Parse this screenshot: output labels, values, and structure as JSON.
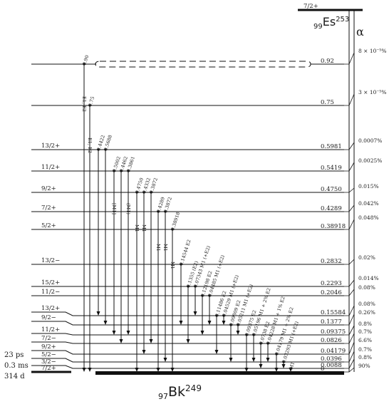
{
  "parent": {
    "prefix": "99",
    "symbol": "Es",
    "mass": "253",
    "spin": "7/2+"
  },
  "alpha_label": "α",
  "daughter": {
    "prefix": "97",
    "symbol": "Bk",
    "mass": "249"
  },
  "levels": [
    {
      "energy": "0.92",
      "spin": "",
      "intensity": "8 × 10⁻⁵%"
    },
    {
      "energy": "0.75",
      "spin": "",
      "intensity": "3 × 10⁻⁵%"
    },
    {
      "energy": "0.5981",
      "spin": "13/2+",
      "intensity": "0.0007%"
    },
    {
      "energy": "0.5419",
      "spin": "11/2+",
      "intensity": "0.0025%"
    },
    {
      "energy": "0.4750",
      "spin": "9/2+",
      "intensity": "0.015%"
    },
    {
      "energy": "0.4289",
      "spin": "7/2+",
      "intensity": "0.042%"
    },
    {
      "energy": "0.38918",
      "spin": "5/2+",
      "intensity": "0.048%"
    },
    {
      "energy": "0.2832",
      "spin": "13/2−",
      "intensity": "0.02%"
    },
    {
      "energy": "0.2293",
      "spin": "15/2+",
      "intensity": "0.014%"
    },
    {
      "energy": "0.2046",
      "spin": "11/2−",
      "intensity": "0.08%"
    },
    {
      "energy": "0.15584",
      "spin": "13/2+",
      "intensity": "0.08%"
    },
    {
      "energy": "0.1377",
      "spin": "9/2−",
      "intensity": "0.26%"
    },
    {
      "energy": "0.09375",
      "spin": "11/2+",
      "intensity": "0.8%"
    },
    {
      "energy": "0.0826",
      "spin": "7/2−",
      "intensity": "0.7%"
    },
    {
      "energy": "0.04179",
      "spin": "9/2+",
      "intensity": "6.6%"
    },
    {
      "energy": "0.0396",
      "spin": "5/2−",
      "intensity": "0.7%"
    },
    {
      "energy": "0.0088",
      "spin": "3/2−",
      "intensity": "0.8%"
    },
    {
      "energy": "0",
      "spin": "7/2+",
      "intensity": "90%"
    }
  ],
  "half_lives": [
    "23 ps",
    "0.3 ms",
    "314 d"
  ],
  "transitions": [
    {
      "label": "0.90",
      "type": "E1, E2"
    },
    {
      "label": "0.75",
      "type": "E1, E2"
    },
    {
      "label": "0.4422",
      "type": ""
    },
    {
      "label": "0.5688",
      "type": ""
    },
    {
      "label": "0.5002",
      "type": "[M1]"
    },
    {
      "label": "0.4462",
      "type": ""
    },
    {
      "label": "0.3861",
      "type": "(M1)"
    },
    {
      "label": "0.4750",
      "type": "M1"
    },
    {
      "label": "0.4332",
      "type": "M1"
    },
    {
      "label": "0.3872",
      "type": ""
    },
    {
      "label": "0.4289",
      "type": "M1"
    },
    {
      "label": "0.3872",
      "type": "M1"
    },
    {
      "label": "0.38918",
      "type": "M1"
    },
    {
      "label": "0.14544 E2",
      "type": ""
    },
    {
      "label": "0.1355 (E2)",
      "type": ""
    },
    {
      "label": "0.07343 M1 (+E2)",
      "type": ""
    },
    {
      "label": "0.12198 E2",
      "type": ""
    },
    {
      "label": "0.04485 M1 (+E2)",
      "type": ""
    },
    {
      "label": "0.11486 E2",
      "type": ""
    },
    {
      "label": "0.04529 M1 (+E2)",
      "type": ""
    },
    {
      "label": "0.09809 E2",
      "type": ""
    },
    {
      "label": "0.05211 M1 (+E2)",
      "type": ""
    },
    {
      "label": "0.09375 E2",
      "type": ""
    },
    {
      "label": "0.05196 M1 + 2% E2",
      "type": ""
    },
    {
      "label": "0.0738 E2",
      "type": ""
    },
    {
      "label": "0.04228 M1 + 1% E2",
      "type": ""
    },
    {
      "label": "0.04179 M1 + 2% E2",
      "type": ""
    },
    {
      "label": "0.03293 M1 (+E2)",
      "type": ""
    },
    {
      "label": "M1",
      "type": ""
    }
  ]
}
